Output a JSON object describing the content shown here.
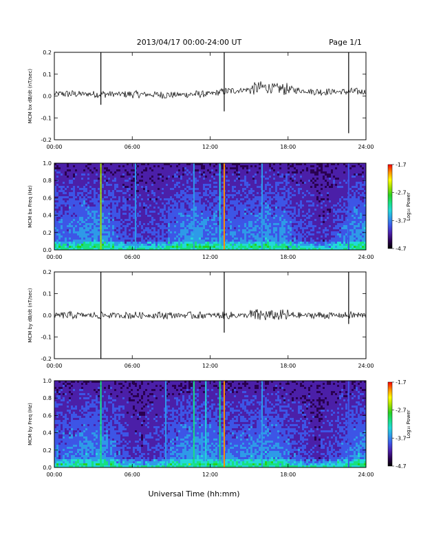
{
  "header": {
    "title": "2013/04/17  00:00-24:00 UT",
    "page": "Page 1/1"
  },
  "footer": {
    "xlabel": "Universal Time (hh:mm)"
  },
  "colors": {
    "trace": "#000000",
    "colormap": [
      "#000000",
      "#2a0050",
      "#4b1fa8",
      "#3d55e6",
      "#2e9ae8",
      "#22d8d8",
      "#18e080",
      "#28d020",
      "#a0e000",
      "#ffff00",
      "#ff9000",
      "#ff0000"
    ]
  },
  "chart_data": [
    {
      "type": "line",
      "ylabel": "MCM bx dB/dt (nT/sec)",
      "xlim": [
        "00:00",
        "24:00"
      ],
      "ylim": [
        -0.2,
        0.2
      ],
      "x_ticks": [
        "00:00",
        "06:00",
        "12:00",
        "18:00",
        "24:00"
      ],
      "y_ticks": [
        "-0.2",
        "-0.1",
        "0.0",
        "0.1",
        "0.2"
      ],
      "baseline_by_hour": [
        [
          0,
          0.01
        ],
        [
          6,
          0.008
        ],
        [
          9,
          0.005
        ],
        [
          12,
          0.01
        ],
        [
          13,
          0.02
        ],
        [
          15,
          0.03
        ],
        [
          16,
          0.04
        ],
        [
          18,
          0.03
        ],
        [
          20,
          0.02
        ],
        [
          24,
          0.02
        ]
      ],
      "spikes": [
        {
          "time": "03:35",
          "max": 0.2,
          "min": -0.04
        },
        {
          "time": "13:05",
          "max": 0.2,
          "min": -0.07
        },
        {
          "time": "22:40",
          "max": 0.2,
          "min": -0.17
        }
      ]
    },
    {
      "type": "heatmap",
      "ylabel": "MCM bx Freq (Hz)",
      "xlim": [
        "00:00",
        "24:00"
      ],
      "ylim": [
        0.0,
        1.0
      ],
      "x_ticks": [
        "00:00",
        "06:00",
        "12:00",
        "18:00",
        "24:00"
      ],
      "y_ticks": [
        "0.0",
        "0.2",
        "0.4",
        "0.6",
        "0.8",
        "1.0"
      ],
      "colorbar_label": "Log₁₀ Power",
      "colorbar_ticks": [
        "-1.7",
        "-2.7",
        "-3.7",
        "-4.7"
      ],
      "clim": [
        -4.7,
        -1.7
      ],
      "vertical_bands": [
        {
          "time": "03:35",
          "level": -2.6
        },
        {
          "time": "06:15",
          "level": -3.7
        },
        {
          "time": "10:45",
          "level": -3.7
        },
        {
          "time": "12:45",
          "level": -3.4
        },
        {
          "time": "13:05",
          "level": -1.9
        },
        {
          "time": "16:00",
          "level": -3.6
        },
        {
          "time": "22:40",
          "level": -3.9
        }
      ]
    },
    {
      "type": "line",
      "ylabel": "MCM by dB/dt (nT/sec)",
      "xlim": [
        "00:00",
        "24:00"
      ],
      "ylim": [
        -0.2,
        0.2
      ],
      "x_ticks": [
        "00:00",
        "06:00",
        "12:00",
        "18:00",
        "24:00"
      ],
      "y_ticks": [
        "-0.2",
        "-0.1",
        "0.0",
        "0.1",
        "0.2"
      ],
      "baseline_by_hour": [
        [
          0,
          0.0
        ],
        [
          24,
          0.0
        ]
      ],
      "spikes": [
        {
          "time": "03:35",
          "max": 0.2,
          "min": -0.2
        },
        {
          "time": "13:05",
          "max": 0.2,
          "min": -0.08
        },
        {
          "time": "22:40",
          "max": 0.2,
          "min": -0.04
        }
      ]
    },
    {
      "type": "heatmap",
      "ylabel": "MCM by Freq (Hz)",
      "xlim": [
        "00:00",
        "24:00"
      ],
      "ylim": [
        0.0,
        1.0
      ],
      "x_ticks": [
        "00:00",
        "06:00",
        "12:00",
        "18:00",
        "24:00"
      ],
      "y_ticks": [
        "0.0",
        "0.2",
        "0.4",
        "0.6",
        "0.8",
        "1.0"
      ],
      "colorbar_label": "Log₁₀ Power",
      "colorbar_ticks": [
        "-1.7",
        "-2.7",
        "-3.7",
        "-4.7"
      ],
      "clim": [
        -4.7,
        -1.7
      ],
      "vertical_bands": [
        {
          "time": "03:35",
          "level": -3.0
        },
        {
          "time": "08:35",
          "level": -3.6
        },
        {
          "time": "10:45",
          "level": -3.2
        },
        {
          "time": "11:40",
          "level": -3.4
        },
        {
          "time": "12:45",
          "level": -3.0
        },
        {
          "time": "13:05",
          "level": -2.0
        },
        {
          "time": "16:00",
          "level": -3.5
        },
        {
          "time": "22:40",
          "level": -3.9
        }
      ]
    }
  ]
}
